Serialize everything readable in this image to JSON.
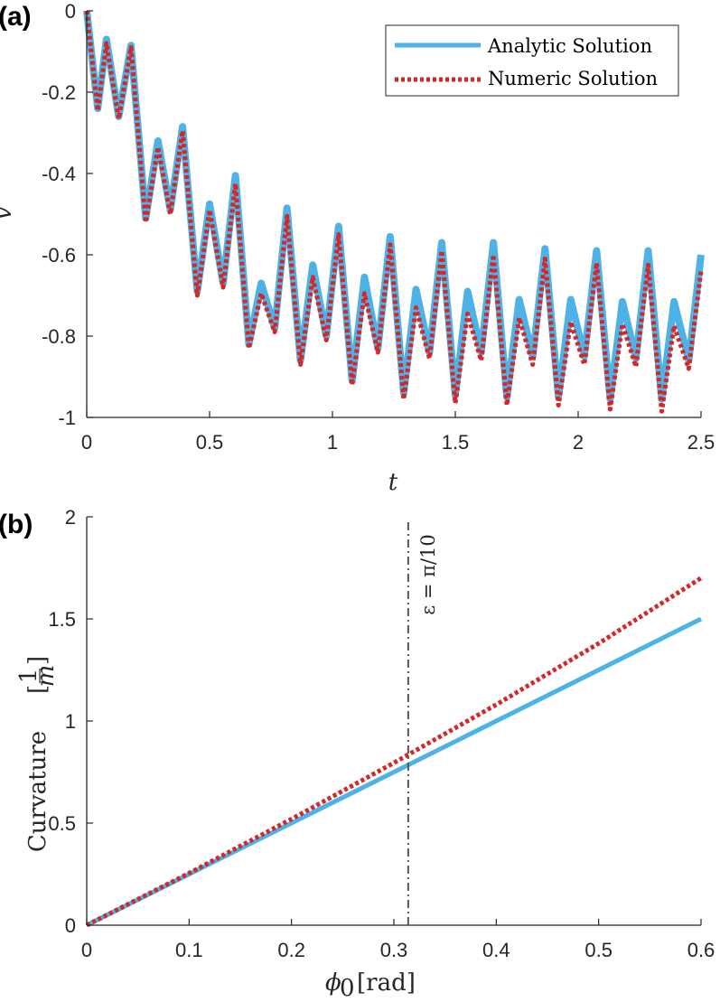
{
  "colors": {
    "analytic": "#4DB3E6",
    "numeric": "#D62728",
    "axis": "#262626",
    "marker_line": "#555555"
  },
  "chart_data": [
    {
      "panel_label": "(a)",
      "type": "line",
      "title": "",
      "xlabel": "t",
      "ylabel": "v",
      "xlim": [
        0,
        2.5
      ],
      "ylim": [
        -1,
        0
      ],
      "x_tick_labels": [
        "0",
        "0.5",
        "1",
        "1.5",
        "2",
        "2.5"
      ],
      "y_tick_labels": [
        "0",
        "-0.2",
        "-0.4",
        "-0.6",
        "-0.8",
        "-1"
      ],
      "legend": {
        "position": "top-right",
        "entries": [
          "Analytic Solution",
          "Numeric Solution"
        ]
      },
      "series": [
        {
          "name": "Analytic Solution",
          "style": "solid",
          "x": [
            0,
            0.045,
            0.08,
            0.13,
            0.18,
            0.24,
            0.29,
            0.34,
            0.39,
            0.45,
            0.5,
            0.555,
            0.605,
            0.66,
            0.71,
            0.765,
            0.815,
            0.87,
            0.92,
            0.975,
            1.025,
            1.08,
            1.13,
            1.185,
            1.235,
            1.29,
            1.34,
            1.395,
            1.445,
            1.5,
            1.55,
            1.605,
            1.655,
            1.71,
            1.76,
            1.815,
            1.865,
            1.92,
            1.97,
            2.025,
            2.075,
            2.13,
            2.18,
            2.235,
            2.285,
            2.34,
            2.39,
            2.45,
            2.5
          ],
          "y": [
            0,
            -0.24,
            -0.07,
            -0.26,
            -0.085,
            -0.51,
            -0.32,
            -0.49,
            -0.285,
            -0.69,
            -0.475,
            -0.67,
            -0.405,
            -0.82,
            -0.67,
            -0.78,
            -0.485,
            -0.86,
            -0.625,
            -0.8,
            -0.53,
            -0.91,
            -0.655,
            -0.83,
            -0.555,
            -0.94,
            -0.685,
            -0.84,
            -0.57,
            -0.945,
            -0.69,
            -0.84,
            -0.57,
            -0.95,
            -0.71,
            -0.85,
            -0.585,
            -0.95,
            -0.71,
            -0.85,
            -0.59,
            -0.955,
            -0.715,
            -0.855,
            -0.59,
            -0.955,
            -0.715,
            -0.86,
            -0.6
          ]
        },
        {
          "name": "Numeric Solution",
          "style": "dotted",
          "x": [
            0,
            0.045,
            0.08,
            0.13,
            0.18,
            0.24,
            0.29,
            0.34,
            0.39,
            0.45,
            0.5,
            0.555,
            0.605,
            0.66,
            0.71,
            0.765,
            0.815,
            0.87,
            0.92,
            0.975,
            1.025,
            1.08,
            1.13,
            1.185,
            1.235,
            1.29,
            1.34,
            1.395,
            1.445,
            1.5,
            1.55,
            1.605,
            1.655,
            1.71,
            1.76,
            1.815,
            1.865,
            1.92,
            1.97,
            2.025,
            2.075,
            2.13,
            2.18,
            2.235,
            2.285,
            2.34,
            2.39,
            2.45,
            2.5
          ],
          "y": [
            0,
            -0.245,
            -0.08,
            -0.265,
            -0.09,
            -0.52,
            -0.335,
            -0.5,
            -0.295,
            -0.7,
            -0.49,
            -0.68,
            -0.425,
            -0.83,
            -0.695,
            -0.79,
            -0.505,
            -0.87,
            -0.655,
            -0.81,
            -0.55,
            -0.92,
            -0.695,
            -0.84,
            -0.575,
            -0.955,
            -0.73,
            -0.855,
            -0.59,
            -0.965,
            -0.745,
            -0.86,
            -0.6,
            -0.97,
            -0.755,
            -0.87,
            -0.61,
            -0.97,
            -0.765,
            -0.87,
            -0.62,
            -0.98,
            -0.77,
            -0.875,
            -0.625,
            -0.985,
            -0.775,
            -0.88,
            -0.64
          ]
        }
      ]
    },
    {
      "panel_label": "(b)",
      "type": "line",
      "title": "",
      "xlabel": "ϕ₀ [rad]",
      "ylabel": "Curvature [1/m]",
      "ylabel_main": "Curvature",
      "ylabel_unit_num": "1",
      "ylabel_unit_den": "m",
      "xlim": [
        0,
        0.6
      ],
      "ylim": [
        0,
        2
      ],
      "x_tick_labels": [
        "0",
        "0.1",
        "0.2",
        "0.3",
        "0.4",
        "0.5",
        "0.6"
      ],
      "y_tick_labels": [
        "0",
        "0.5",
        "1",
        "1.5",
        "2"
      ],
      "annotation": {
        "x": 0.314,
        "text": "ε = π/10"
      },
      "series": [
        {
          "name": "Analytic Solution",
          "style": "solid",
          "x": [
            0,
            0.6
          ],
          "y": [
            0,
            1.5
          ]
        },
        {
          "name": "Numeric Solution",
          "style": "dotted",
          "x": [
            0,
            0.1,
            0.2,
            0.3,
            0.4,
            0.5,
            0.6
          ],
          "y": [
            0,
            0.255,
            0.52,
            0.795,
            1.08,
            1.38,
            1.7
          ]
        }
      ]
    }
  ]
}
